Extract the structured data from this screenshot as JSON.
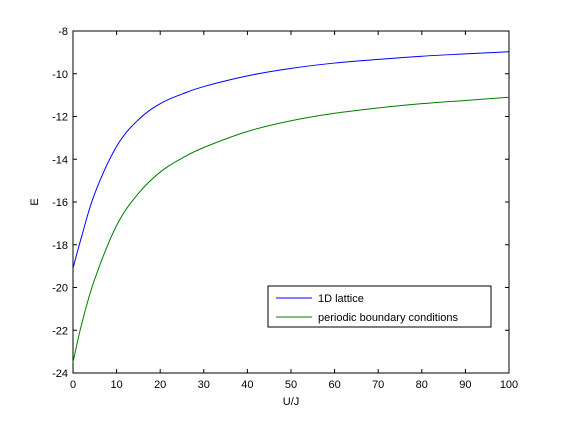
{
  "chart_data": {
    "type": "line",
    "title": "",
    "xlabel": "U/J",
    "ylabel": "E",
    "xlim": [
      0,
      100
    ],
    "ylim": [
      -24,
      -8
    ],
    "xticks": [
      0,
      10,
      20,
      30,
      40,
      50,
      60,
      70,
      80,
      90,
      100
    ],
    "yticks": [
      -8,
      -10,
      -12,
      -14,
      -16,
      -18,
      -20,
      -22,
      -24
    ],
    "x": [
      0,
      2,
      5,
      10,
      15,
      20,
      25,
      30,
      40,
      50,
      60,
      70,
      80,
      90,
      100
    ],
    "series": [
      {
        "name": "1D lattice",
        "color": "#0000ff",
        "values": [
          -19.1,
          -17.6,
          -15.6,
          -13.4,
          -12.15,
          -11.4,
          -10.95,
          -10.6,
          -10.1,
          -9.75,
          -9.5,
          -9.33,
          -9.18,
          -9.07,
          -8.97
        ]
      },
      {
        "name": "periodic boundary conditions",
        "color": "#007f00",
        "values": [
          -23.5,
          -21.7,
          -19.6,
          -17.1,
          -15.6,
          -14.6,
          -13.95,
          -13.45,
          -12.7,
          -12.2,
          -11.85,
          -11.6,
          -11.4,
          -11.25,
          -11.1
        ]
      }
    ],
    "grid": false,
    "legend_position": "bottom-right"
  }
}
